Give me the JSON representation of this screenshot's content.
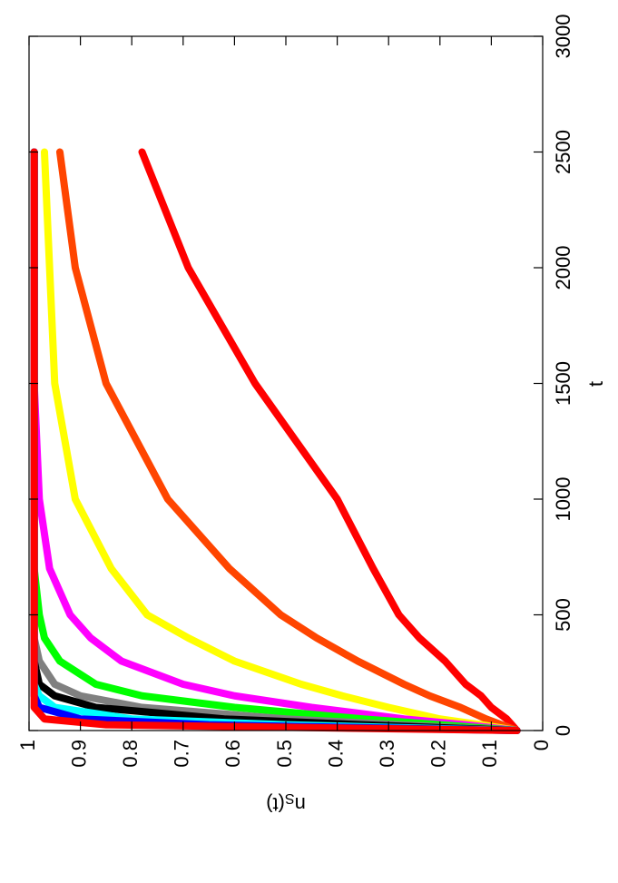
{
  "chart_data": {
    "type": "line",
    "xlabel": "t",
    "ylabel": {
      "base": "n",
      "sub": "S",
      "rest": "(t)"
    },
    "x": [
      0,
      25,
      50,
      100,
      150,
      200,
      300,
      400,
      500,
      700,
      1000,
      1500,
      2000,
      2500
    ],
    "xlim": [
      0,
      3000
    ],
    "xticks": [
      0,
      500,
      1000,
      1500,
      2000,
      2500,
      3000
    ],
    "ylim": [
      0,
      1
    ],
    "yticks": [
      0,
      0.1,
      0.2,
      0.3,
      0.4,
      0.5,
      0.6,
      0.7,
      0.8,
      0.9,
      1
    ],
    "series": [
      {
        "color": "#ff0000",
        "values": [
          0.05,
          0.06,
          0.07,
          0.1,
          0.12,
          0.15,
          0.19,
          0.24,
          0.28,
          0.33,
          0.4,
          0.56,
          0.69,
          0.78
        ]
      },
      {
        "color": "#ff4500",
        "values": [
          0.05,
          0.08,
          0.11,
          0.16,
          0.22,
          0.27,
          0.36,
          0.44,
          0.51,
          0.61,
          0.73,
          0.85,
          0.91,
          0.94
        ]
      },
      {
        "color": "#ffff00",
        "values": [
          0.05,
          0.12,
          0.2,
          0.3,
          0.39,
          0.47,
          0.6,
          0.69,
          0.77,
          0.84,
          0.91,
          0.95,
          0.96,
          0.97
        ]
      },
      {
        "color": "#ff00ff",
        "values": [
          0.05,
          0.15,
          0.27,
          0.45,
          0.6,
          0.7,
          0.82,
          0.88,
          0.92,
          0.96,
          0.98,
          0.99,
          0.99,
          0.99
        ]
      },
      {
        "color": "#00ff00",
        "values": [
          0.05,
          0.2,
          0.35,
          0.6,
          0.78,
          0.87,
          0.94,
          0.97,
          0.98,
          0.99,
          0.99,
          0.99,
          0.99,
          0.99
        ]
      },
      {
        "color": "#808080",
        "values": [
          0.05,
          0.28,
          0.5,
          0.78,
          0.9,
          0.95,
          0.98,
          0.99,
          0.99,
          0.99,
          0.99,
          0.99,
          0.99,
          0.99
        ]
      },
      {
        "color": "#000000",
        "values": [
          0.05,
          0.35,
          0.62,
          0.87,
          0.95,
          0.98,
          0.99,
          0.99,
          0.99,
          0.99,
          0.99,
          0.99,
          0.99,
          0.99
        ]
      },
      {
        "color": "#00ffff",
        "values": [
          0.05,
          0.5,
          0.8,
          0.95,
          0.98,
          0.99,
          0.99,
          0.99,
          0.99,
          0.99,
          0.99,
          0.99,
          0.99,
          0.99
        ]
      },
      {
        "color": "#0000ff",
        "values": [
          0.05,
          0.65,
          0.9,
          0.98,
          0.99,
          0.99,
          0.99,
          0.99,
          0.99,
          0.99,
          0.99,
          0.99,
          0.99,
          0.99
        ]
      },
      {
        "color": "#ff0000",
        "values": [
          0.05,
          0.85,
          0.97,
          0.99,
          0.99,
          0.99,
          0.99,
          0.99,
          0.99,
          0.99,
          0.99,
          0.99,
          0.99,
          0.99
        ]
      }
    ]
  }
}
